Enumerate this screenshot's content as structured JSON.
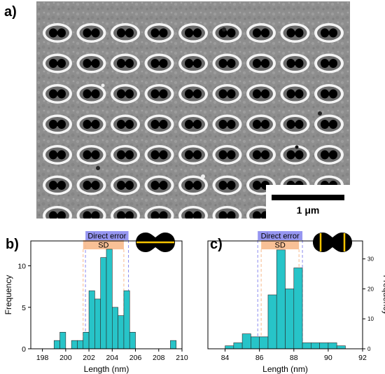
{
  "figure": {
    "panels": [
      {
        "label": "a)"
      },
      {
        "label": "b)"
      },
      {
        "label": "c)"
      }
    ],
    "scale_bar": {
      "label": "1 μm"
    }
  },
  "chart_data": [
    {
      "type": "bar",
      "panel": "b)",
      "xlabel": "Length (nm)",
      "ylabel": "Frequency",
      "xlim": [
        197,
        210
      ],
      "ylim": [
        0,
        13
      ],
      "xticks": [
        198,
        200,
        202,
        204,
        206,
        208,
        210
      ],
      "yticks": [
        0,
        5,
        10
      ],
      "bin_width": 0.5,
      "bins": [
        199.0,
        199.5,
        200.0,
        200.5,
        201.0,
        201.5,
        202.0,
        202.5,
        203.0,
        203.5,
        204.0,
        204.5,
        205.0,
        205.5,
        206.0,
        206.5,
        207.0,
        207.5,
        208.0,
        208.5,
        209.0
      ],
      "values": [
        1,
        2,
        0,
        1,
        1,
        2,
        7,
        6,
        11,
        12,
        5,
        4,
        7,
        2,
        0,
        0,
        0,
        0,
        0,
        0,
        1
      ],
      "bands": [
        {
          "label": "Direct error",
          "range": [
            201.7,
            205.4
          ],
          "color": "#8b8bef"
        },
        {
          "label": "SD",
          "range": [
            201.5,
            205.0
          ],
          "color": "#f7b98b"
        }
      ],
      "bar_color": "#27c4c8",
      "inset_line": "horizontal"
    },
    {
      "type": "bar",
      "panel": "c)",
      "xlabel": "Length (nm)",
      "ylabel": "Frequency",
      "xlim": [
        83,
        92
      ],
      "ylim": [
        0,
        36
      ],
      "xticks": [
        84,
        86,
        88,
        90,
        92
      ],
      "yticks": [
        0,
        10,
        20,
        30
      ],
      "y_axis_side": "right",
      "bin_width": 0.5,
      "bins": [
        84.0,
        84.5,
        85.0,
        85.5,
        86.0,
        86.5,
        87.0,
        87.5,
        88.0,
        88.5,
        89.0,
        89.5,
        90.0,
        90.5
      ],
      "values": [
        1,
        2,
        5,
        4,
        4,
        18,
        33,
        20,
        27,
        2,
        2,
        2,
        2,
        1
      ],
      "bands": [
        {
          "label": "Direct error",
          "range": [
            85.9,
            88.5
          ],
          "color": "#8b8bef"
        },
        {
          "label": "SD",
          "range": [
            86.1,
            88.3
          ],
          "color": "#f7b98b"
        }
      ],
      "bar_color": "#27c4c8",
      "inset_line": "vertical"
    }
  ]
}
